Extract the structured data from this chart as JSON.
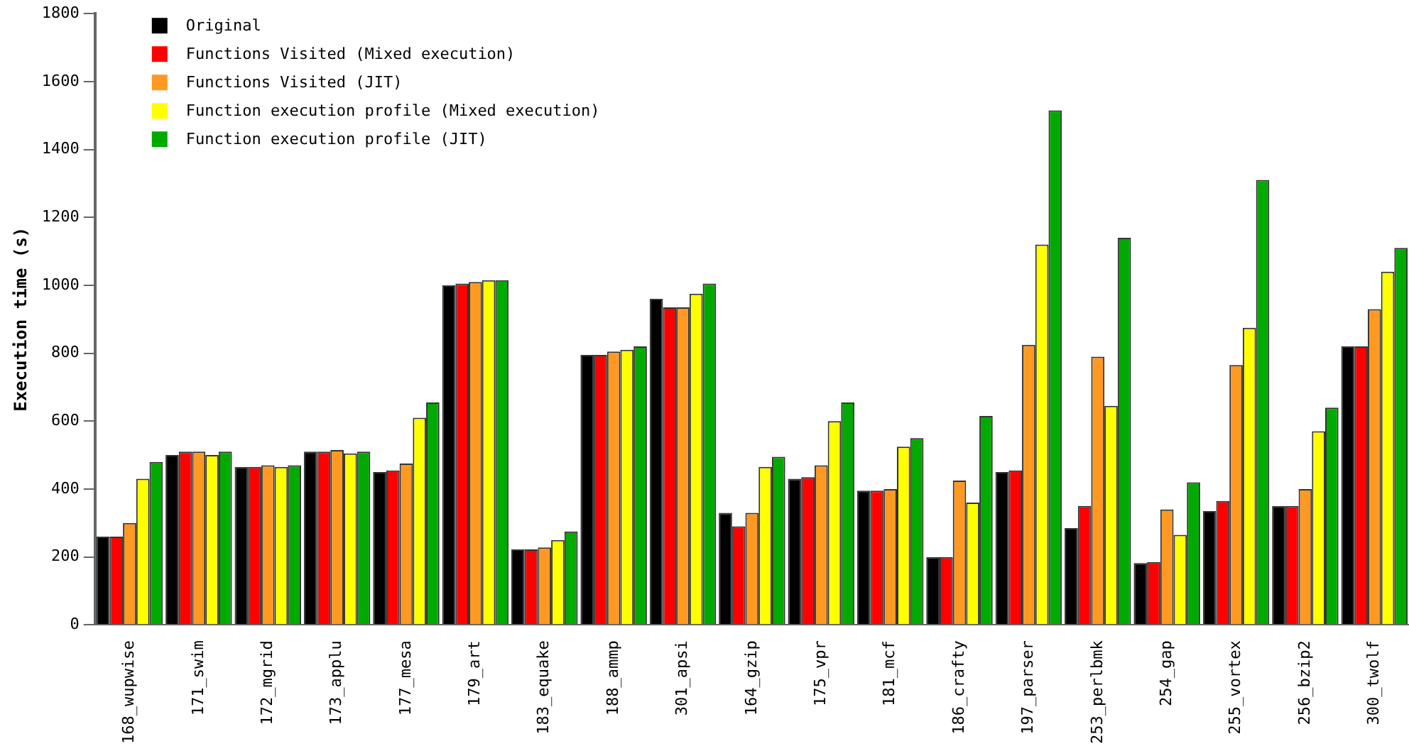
{
  "chart_data": {
    "type": "bar",
    "ylabel": "Execution time (s)",
    "categories": [
      "168_wupwise",
      "171_swim",
      "172_mgrid",
      "173_applu",
      "177_mesa",
      "179_art",
      "183_equake",
      "188_ammp",
      "301_apsi",
      "164_gzip",
      "175_vpr",
      "181_mcf",
      "186_crafty",
      "197_parser",
      "253_perlbmk",
      "254_gap",
      "255_vortex",
      "256_bzip2",
      "300_twolf"
    ],
    "series": [
      {
        "name": "Original",
        "color": "#000000",
        "values": [
          260,
          500,
          465,
          510,
          450,
          1000,
          222,
          795,
          960,
          330,
          430,
          395,
          200,
          450,
          285,
          182,
          335,
          350,
          820
        ]
      },
      {
        "name": "Functions Visited (Mixed execution)",
        "color": "#ff0000",
        "values": [
          260,
          510,
          465,
          510,
          455,
          1005,
          222,
          795,
          935,
          290,
          435,
          395,
          200,
          455,
          350,
          185,
          365,
          350,
          820
        ]
      },
      {
        "name": "Functions Visited (JIT)",
        "color": "#ff9922",
        "values": [
          300,
          510,
          470,
          515,
          475,
          1010,
          228,
          805,
          935,
          330,
          470,
          400,
          425,
          825,
          790,
          340,
          765,
          400,
          930
        ]
      },
      {
        "name": "Function execution profile (Mixed execution)",
        "color": "#ffff00",
        "values": [
          430,
          500,
          465,
          505,
          610,
          1015,
          250,
          810,
          975,
          465,
          600,
          525,
          360,
          1120,
          645,
          265,
          875,
          570,
          1040
        ]
      },
      {
        "name": "Function execution profile (JIT)",
        "color": "#00aa00",
        "values": [
          480,
          510,
          470,
          510,
          655,
          1015,
          275,
          820,
          1005,
          495,
          655,
          550,
          615,
          1515,
          1140,
          420,
          1310,
          640,
          1110
        ]
      }
    ],
    "ylim": [
      0,
      1800
    ],
    "yticks": [
      0,
      200,
      400,
      600,
      800,
      1000,
      1200,
      1400,
      1600,
      1800
    ],
    "grid": false,
    "legend": "top left"
  }
}
